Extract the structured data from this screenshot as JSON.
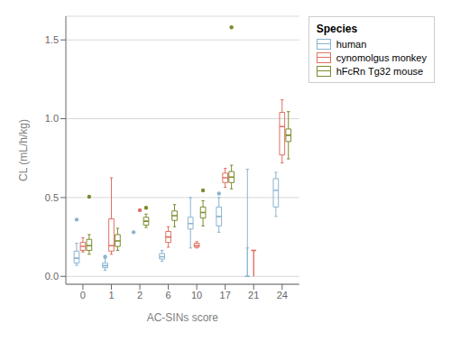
{
  "chart_data": {
    "type": "box",
    "xlabel": "AC-SINs score",
    "ylabel": "CL (mL/h/kg)",
    "legend_title": "Species",
    "categories": [
      "0",
      "1",
      "2",
      "6",
      "10",
      "17",
      "21",
      "24"
    ],
    "series": [
      {
        "name": "human",
        "color": "#8ab4d0",
        "boxes": [
          {
            "q1": 0.085,
            "median": 0.115,
            "q3": 0.16,
            "whislo": 0.07,
            "whishi": 0.21,
            "fliers": [
              0.36
            ]
          },
          {
            "q1": 0.055,
            "median": 0.068,
            "q3": 0.085,
            "whislo": 0.038,
            "whishi": 0.115,
            "fliers": [
              0.125
            ]
          },
          {
            "q1": 0.0,
            "median": 0.0,
            "q3": 0.0,
            "whislo": 0.0,
            "whishi": 0.0,
            "fliers": [
              0.28
            ]
          },
          {
            "q1": 0.11,
            "median": 0.125,
            "q3": 0.145,
            "whislo": 0.095,
            "whishi": 0.165,
            "fliers": []
          },
          {
            "q1": 0.3,
            "median": 0.335,
            "q3": 0.375,
            "whislo": 0.18,
            "whishi": 0.5,
            "fliers": []
          },
          {
            "q1": 0.32,
            "median": 0.38,
            "q3": 0.44,
            "whislo": 0.28,
            "whishi": 0.5,
            "fliers": [
              0.525
            ]
          },
          {
            "q1": 0.0,
            "median": 0.0,
            "q3": 0.0,
            "whislo": 0.18,
            "whishi": 0.68,
            "fliers": []
          },
          {
            "q1": 0.44,
            "median": 0.545,
            "q3": 0.62,
            "whislo": 0.38,
            "whishi": 0.66,
            "fliers": []
          }
        ]
      },
      {
        "name": "cynomolgus monkey",
        "color": "#e07060",
        "boxes": [
          {
            "q1": 0.165,
            "median": 0.19,
            "q3": 0.215,
            "whislo": 0.155,
            "whishi": 0.245,
            "fliers": []
          },
          {
            "q1": 0.16,
            "median": 0.195,
            "q3": 0.365,
            "whislo": 0.14,
            "whishi": 0.625,
            "fliers": []
          },
          {
            "q1": 0.0,
            "median": 0.0,
            "q3": 0.0,
            "whislo": 0.0,
            "whishi": 0.0,
            "fliers": [
              0.42
            ]
          },
          {
            "q1": 0.215,
            "median": 0.25,
            "q3": 0.285,
            "whislo": 0.185,
            "whishi": 0.315,
            "fliers": []
          },
          {
            "q1": 0.185,
            "median": 0.195,
            "q3": 0.21,
            "whislo": 0.18,
            "whishi": 0.22,
            "fliers": []
          },
          {
            "q1": 0.595,
            "median": 0.625,
            "q3": 0.655,
            "whislo": 0.565,
            "whishi": 0.685,
            "fliers": []
          },
          {
            "q1": 0.0,
            "median": 0.165,
            "q3": 0.0,
            "whislo": 0.165,
            "whishi": 0.165,
            "fliers": []
          },
          {
            "q1": 0.77,
            "median": 0.95,
            "q3": 1.04,
            "whislo": 0.72,
            "whishi": 1.12,
            "fliers": []
          }
        ]
      },
      {
        "name": "hFcRn Tg32 mouse",
        "color": "#7a8c2e",
        "boxes": [
          {
            "q1": 0.165,
            "median": 0.195,
            "q3": 0.235,
            "whislo": 0.14,
            "whishi": 0.265,
            "fliers": [
              0.505
            ]
          },
          {
            "q1": 0.19,
            "median": 0.225,
            "q3": 0.265,
            "whislo": 0.165,
            "whishi": 0.305,
            "fliers": []
          },
          {
            "q1": 0.325,
            "median": 0.35,
            "q3": 0.375,
            "whislo": 0.31,
            "whishi": 0.395,
            "fliers": [
              0.435
            ]
          },
          {
            "q1": 0.355,
            "median": 0.385,
            "q3": 0.415,
            "whislo": 0.315,
            "whishi": 0.455,
            "fliers": []
          },
          {
            "q1": 0.37,
            "median": 0.405,
            "q3": 0.44,
            "whislo": 0.32,
            "whishi": 0.48,
            "fliers": [
              0.545
            ]
          },
          {
            "q1": 0.595,
            "median": 0.63,
            "q3": 0.665,
            "whislo": 0.555,
            "whishi": 0.705,
            "fliers": [
              1.58
            ]
          },
          {
            "q1": 0.0,
            "median": 0.0,
            "q3": 0.0,
            "whislo": 0.0,
            "whishi": 0.0,
            "fliers": []
          },
          {
            "q1": 0.855,
            "median": 0.895,
            "q3": 0.935,
            "whislo": 0.745,
            "whishi": 1.045,
            "fliers": []
          }
        ]
      }
    ],
    "ylim": [
      -0.05,
      1.65
    ],
    "yticks": [
      {
        "value": 0.0,
        "label": "0.0"
      },
      0.5,
      {
        "value": 1.0,
        "label": "1.0"
      },
      {
        "value": 1.5,
        "label": "1.5"
      }
    ],
    "grid": true,
    "legend": "right"
  }
}
